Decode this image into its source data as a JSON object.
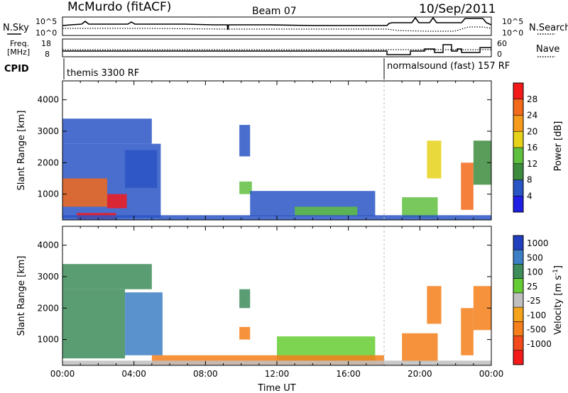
{
  "header": {
    "station": "McMurdo (fitACF)",
    "beam": "Beam 07",
    "date": "10/Sep/2011"
  },
  "noise_panel": {
    "left_label": "N.Sky",
    "right_label": "N.Search",
    "left_ticks": [
      "10^5",
      "10^0"
    ],
    "right_ticks": [
      "10^5",
      "10^0"
    ]
  },
  "freq_panel": {
    "left_label_line1": "Freq.",
    "left_label_line2": "[MHz]",
    "left_ticks": [
      "18",
      "8"
    ],
    "right_label": "Nave",
    "right_ticks": [
      "60",
      "0"
    ]
  },
  "cpid": {
    "label": "CPID",
    "segments": [
      "themis 3300 RF",
      "normalsound (fast) 157 RF"
    ]
  },
  "colors": {
    "power": [
      "#1f1fe6",
      "#2a55c4",
      "#3d8c3d",
      "#5fbf3f",
      "#e6d21a",
      "#f59a1a",
      "#f26a1a",
      "#f51a1a"
    ],
    "velocity": [
      "#1f3fbf",
      "#3d7fc4",
      "#3d8c5a",
      "#66cc33",
      "#bfbfbf",
      "#f5a31a",
      "#f57f1a",
      "#f24a1a",
      "#f51a1a"
    ]
  },
  "chart_data": [
    {
      "type": "heatmap",
      "panel": "power",
      "xlabel": "",
      "ylabel": "Slant Range [km]",
      "x_unit": "hours UT",
      "xlim": [
        0,
        24
      ],
      "xtick_labels": [
        "00:00",
        "04:00",
        "08:00",
        "12:00",
        "16:00",
        "20:00",
        "00:00"
      ],
      "ylim": [
        180,
        4600
      ],
      "yticks": [
        1000,
        2000,
        3000,
        4000
      ],
      "colorbar": {
        "label": "Power [dB]",
        "tick_labels": [
          "4",
          "8",
          "12",
          "16",
          "20",
          "24",
          "28"
        ],
        "range": [
          0,
          32
        ]
      },
      "regions": [
        {
          "t0": 0.0,
          "t1": 5.5,
          "r0": 250,
          "r1": 2600,
          "value": 7
        },
        {
          "t0": 0.0,
          "t1": 2.5,
          "r0": 600,
          "r1": 1500,
          "value": 26
        },
        {
          "t0": 2.5,
          "t1": 3.6,
          "r0": 550,
          "r1": 1000,
          "value": 28
        },
        {
          "t0": 0.8,
          "t1": 3.0,
          "r0": 200,
          "r1": 400,
          "value": 29
        },
        {
          "t0": 3.5,
          "t1": 5.3,
          "r0": 1200,
          "r1": 2400,
          "value": 6
        },
        {
          "t0": 0.0,
          "t1": 5.0,
          "r0": 2600,
          "r1": 3400,
          "value": 7
        },
        {
          "t0": 9.9,
          "t1": 10.6,
          "r0": 1000,
          "r1": 1400,
          "value": 14
        },
        {
          "t0": 9.9,
          "t1": 10.5,
          "r0": 2200,
          "r1": 3200,
          "value": 7
        },
        {
          "t0": 10.5,
          "t1": 17.5,
          "r0": 300,
          "r1": 1100,
          "value": 7
        },
        {
          "t0": 13.0,
          "t1": 16.5,
          "r0": 300,
          "r1": 600,
          "value": 15
        },
        {
          "t0": 19.0,
          "t1": 21.0,
          "r0": 250,
          "r1": 900,
          "value": 12
        },
        {
          "t0": 20.4,
          "t1": 21.2,
          "r0": 1500,
          "r1": 2700,
          "value": 18
        },
        {
          "t0": 22.3,
          "t1": 23.0,
          "r0": 500,
          "r1": 2000,
          "value": 24
        },
        {
          "t0": 23.0,
          "t1": 24.0,
          "r0": 1300,
          "r1": 2700,
          "value": 8
        },
        {
          "t0": 0.0,
          "t1": 24.0,
          "r0": 180,
          "r1": 330,
          "value": 5
        }
      ]
    },
    {
      "type": "heatmap",
      "panel": "velocity",
      "xlabel": "Time UT",
      "ylabel": "Slant Range [km]",
      "x_unit": "hours UT",
      "xlim": [
        0,
        24
      ],
      "xtick_labels": [
        "00:00",
        "04:00",
        "08:00",
        "12:00",
        "16:00",
        "20:00",
        "00:00"
      ],
      "ylim": [
        180,
        4600
      ],
      "yticks": [
        1000,
        2000,
        3000,
        4000
      ],
      "colorbar": {
        "label": "Velocity [m s-1]",
        "tick_labels": [
          "1000",
          "500",
          "100",
          "25",
          "-25",
          "-100",
          "-500",
          "-1000"
        ],
        "range": [
          -1000,
          1000
        ]
      },
      "regions": [
        {
          "t0": 0.0,
          "t1": 3.5,
          "r0": 400,
          "r1": 2600,
          "value": 250
        },
        {
          "t0": 3.5,
          "t1": 5.6,
          "r0": 500,
          "r1": 2500,
          "value": 900
        },
        {
          "t0": 0.0,
          "t1": 5.0,
          "r0": 2600,
          "r1": 3400,
          "value": 120
        },
        {
          "t0": 9.9,
          "t1": 10.5,
          "r0": 1000,
          "r1": 1400,
          "value": -400
        },
        {
          "t0": 9.9,
          "t1": 10.5,
          "r0": 2000,
          "r1": 2600,
          "value": 120
        },
        {
          "t0": 12.0,
          "t1": 17.5,
          "r0": 300,
          "r1": 1100,
          "value": 60
        },
        {
          "t0": 5.0,
          "t1": 18.0,
          "r0": 200,
          "r1": 500,
          "value": -120
        },
        {
          "t0": 19.0,
          "t1": 21.0,
          "r0": 300,
          "r1": 1200,
          "value": -300
        },
        {
          "t0": 20.4,
          "t1": 21.2,
          "r0": 1500,
          "r1": 2700,
          "value": -350
        },
        {
          "t0": 22.3,
          "t1": 23.0,
          "r0": 500,
          "r1": 2000,
          "value": -250
        },
        {
          "t0": 23.0,
          "t1": 24.0,
          "r0": 1300,
          "r1": 2700,
          "value": -120
        },
        {
          "t0": 0.0,
          "t1": 24.0,
          "r0": 180,
          "r1": 330,
          "value": 10
        }
      ]
    }
  ]
}
